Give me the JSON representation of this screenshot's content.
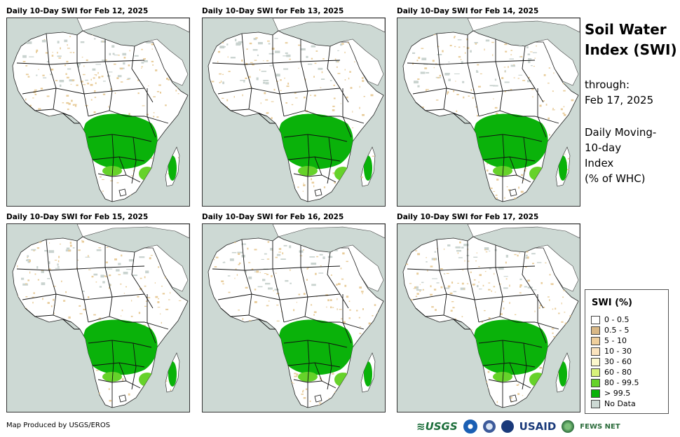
{
  "panels": [
    {
      "title": "Daily 10-Day SWI for Feb 12, 2025"
    },
    {
      "title": "Daily 10-Day SWI for Feb 13, 2025"
    },
    {
      "title": "Daily 10-Day SWI for Feb 14, 2025"
    },
    {
      "title": "Daily 10-Day SWI for Feb 15, 2025"
    },
    {
      "title": "Daily 10-Day SWI for Feb 16, 2025"
    },
    {
      "title": "Daily 10-Day SWI for Feb 17, 2025"
    }
  ],
  "sidebar": {
    "title_line1": "Soil Water",
    "title_line2": "Index (SWI)",
    "through_label": "through:",
    "through_date": "Feb 17, 2025",
    "desc_line1": "Daily Moving-",
    "desc_line2": "10-day",
    "desc_line3": "Index",
    "desc_line4": "(% of WHC)"
  },
  "legend": {
    "title": "SWI (%)",
    "items": [
      {
        "label": "0 - 0.5",
        "color": "#ffffff"
      },
      {
        "label": "0.5 - 5",
        "color": "#d9b886"
      },
      {
        "label": "5 - 10",
        "color": "#efcf9c"
      },
      {
        "label": "10 - 30",
        "color": "#fae3bd"
      },
      {
        "label": "30 - 60",
        "color": "#fcf8cc"
      },
      {
        "label": "60 - 80",
        "color": "#d8f27a"
      },
      {
        "label": "80 - 99.5",
        "color": "#66d22a"
      },
      {
        "label": "> 99.5",
        "color": "#0ab20a"
      },
      {
        "label": "No Data",
        "color": "#cdd9d4"
      }
    ]
  },
  "footer": {
    "credit": "Map Produced by USGS/EROS",
    "logo_usgs": "≋USGS",
    "logo_usaid": "USAID",
    "logo_fews": "FEWS NET"
  },
  "colors": {
    "land": "#ffffff",
    "sea": "#cdd9d4",
    "tan": "#e8cc9a",
    "green": "#0ab20a",
    "lightgreen": "#66d22a"
  }
}
